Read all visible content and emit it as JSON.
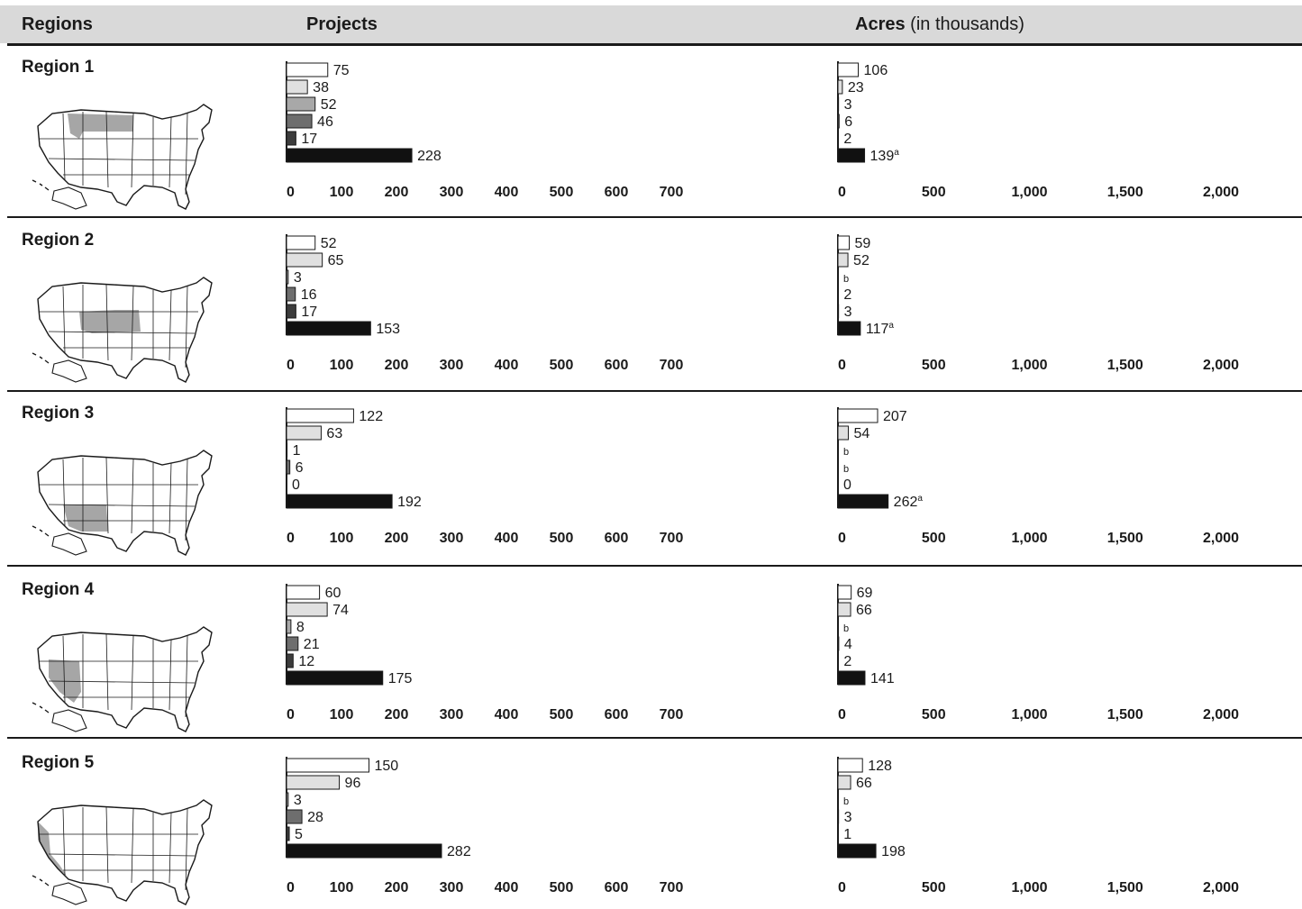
{
  "header": {
    "regions": "Regions",
    "projects": "Projects",
    "acres_bold": "Acres",
    "acres_rest": "(in thousands)"
  },
  "colors": {
    "header_bg": "#d9d9d9",
    "series": [
      "#ffffff",
      "#e0e0e0",
      "#a8a8a8",
      "#6e6e6e",
      "#3c3c3c",
      "#111111"
    ],
    "highlight": "#a6a6a6"
  },
  "icons": [
    "us-map-icon"
  ],
  "chart_data": [
    {
      "type": "bar",
      "orientation": "horizontal",
      "title": "Region 1",
      "projects": {
        "values": [
          75,
          38,
          52,
          46,
          17,
          228
        ],
        "labels": [
          "75",
          "38",
          "52",
          "46",
          "17",
          "228"
        ],
        "xlim": [
          0,
          700
        ],
        "ticks": [
          "0",
          "100",
          "200",
          "300",
          "400",
          "500",
          "600",
          "700"
        ]
      },
      "acres": {
        "values": [
          106,
          23,
          3,
          6,
          2,
          139
        ],
        "labels": [
          "106",
          "23",
          "3",
          "6",
          "2",
          "139"
        ],
        "notes": [
          "",
          "",
          "",
          "",
          "",
          "a"
        ],
        "xlim": [
          0,
          2000
        ],
        "ticks": [
          "0",
          "500",
          "1,000",
          "1,500",
          "2,000"
        ]
      }
    },
    {
      "type": "bar",
      "orientation": "horizontal",
      "title": "Region 2",
      "projects": {
        "values": [
          52,
          65,
          3,
          16,
          17,
          153
        ],
        "labels": [
          "52",
          "65",
          "3",
          "16",
          "17",
          "153"
        ],
        "xlim": [
          0,
          700
        ],
        "ticks": [
          "0",
          "100",
          "200",
          "300",
          "400",
          "500",
          "600",
          "700"
        ]
      },
      "acres": {
        "values": [
          59,
          52,
          0,
          2,
          3,
          117
        ],
        "labels": [
          "59",
          "52",
          "b",
          "2",
          "3",
          "117"
        ],
        "notes": [
          "",
          "",
          "",
          "",
          "",
          "a"
        ],
        "xlim": [
          0,
          2000
        ],
        "ticks": [
          "0",
          "500",
          "1,000",
          "1,500",
          "2,000"
        ]
      }
    },
    {
      "type": "bar",
      "orientation": "horizontal",
      "title": "Region 3",
      "projects": {
        "values": [
          122,
          63,
          1,
          6,
          0,
          192
        ],
        "labels": [
          "122",
          "63",
          "1",
          "6",
          "0",
          "192"
        ],
        "xlim": [
          0,
          700
        ],
        "ticks": [
          "0",
          "100",
          "200",
          "300",
          "400",
          "500",
          "600",
          "700"
        ]
      },
      "acres": {
        "values": [
          207,
          54,
          0,
          0,
          0,
          262
        ],
        "labels": [
          "207",
          "54",
          "b",
          "b",
          "0",
          "262"
        ],
        "notes": [
          "",
          "",
          "",
          "",
          "",
          "a"
        ],
        "xlim": [
          0,
          2000
        ],
        "ticks": [
          "0",
          "500",
          "1,000",
          "1,500",
          "2,000"
        ]
      }
    },
    {
      "type": "bar",
      "orientation": "horizontal",
      "title": "Region 4",
      "projects": {
        "values": [
          60,
          74,
          8,
          21,
          12,
          175
        ],
        "labels": [
          "60",
          "74",
          "8",
          "21",
          "12",
          "175"
        ],
        "xlim": [
          0,
          700
        ],
        "ticks": [
          "0",
          "100",
          "200",
          "300",
          "400",
          "500",
          "600",
          "700"
        ]
      },
      "acres": {
        "values": [
          69,
          66,
          0,
          4,
          2,
          141
        ],
        "labels": [
          "69",
          "66",
          "b",
          "4",
          "2",
          "141"
        ],
        "notes": [
          "",
          "",
          "",
          "",
          "",
          ""
        ],
        "xlim": [
          0,
          2000
        ],
        "ticks": [
          "0",
          "500",
          "1,000",
          "1,500",
          "2,000"
        ]
      }
    },
    {
      "type": "bar",
      "orientation": "horizontal",
      "title": "Region 5",
      "projects": {
        "values": [
          150,
          96,
          3,
          28,
          5,
          282
        ],
        "labels": [
          "150",
          "96",
          "3",
          "28",
          "5",
          "282"
        ],
        "xlim": [
          0,
          700
        ],
        "ticks": [
          "0",
          "100",
          "200",
          "300",
          "400",
          "500",
          "600",
          "700"
        ]
      },
      "acres": {
        "values": [
          128,
          66,
          0,
          3,
          1,
          198
        ],
        "labels": [
          "128",
          "66",
          "b",
          "3",
          "1",
          "198"
        ],
        "notes": [
          "",
          "",
          "",
          "",
          "",
          ""
        ],
        "xlim": [
          0,
          2000
        ],
        "ticks": [
          "0",
          "500",
          "1,000",
          "1,500",
          "2,000"
        ]
      }
    }
  ]
}
